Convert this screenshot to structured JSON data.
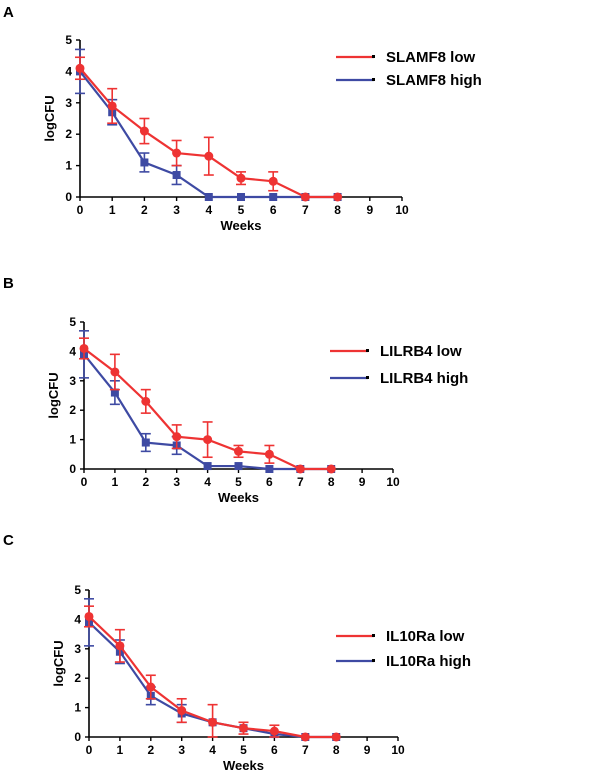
{
  "colors": {
    "low": "#ee3333",
    "high": "#3e4aa3",
    "axis": "#000000"
  },
  "chart_data": [
    {
      "type": "line",
      "panel": "A",
      "xlabel": "Weeks",
      "ylabel": "logCFU",
      "xlim": [
        0,
        10
      ],
      "ylim": [
        0,
        5
      ],
      "xticks": [
        0,
        1,
        2,
        3,
        4,
        5,
        6,
        7,
        8,
        9,
        10
      ],
      "yticks": [
        0,
        1,
        2,
        3,
        4,
        5
      ],
      "legend_position": "top-right",
      "series": [
        {
          "name": "SLAMF8 low",
          "marker": "circle",
          "color": "#ee3333",
          "x": [
            0,
            1,
            2,
            3,
            4,
            5,
            6,
            7,
            8
          ],
          "y": [
            4.1,
            2.9,
            2.1,
            1.4,
            1.3,
            0.6,
            0.5,
            0,
            0
          ],
          "err": [
            0.35,
            0.55,
            0.4,
            0.4,
            0.6,
            0.2,
            0.3,
            0,
            0
          ]
        },
        {
          "name": "SLAMF8 high",
          "marker": "square",
          "color": "#3e4aa3",
          "x": [
            0,
            1,
            2,
            3,
            4,
            5,
            6,
            7,
            8
          ],
          "y": [
            4.0,
            2.7,
            1.1,
            0.7,
            0,
            0,
            0,
            0,
            0
          ],
          "err": [
            0.7,
            0.4,
            0.3,
            0.3,
            0,
            0,
            0,
            0,
            0
          ]
        }
      ]
    },
    {
      "type": "line",
      "panel": "B",
      "xlabel": "Weeks",
      "ylabel": "logCFU",
      "xlim": [
        0,
        10
      ],
      "ylim": [
        0,
        5
      ],
      "xticks": [
        0,
        1,
        2,
        3,
        4,
        5,
        6,
        7,
        8,
        9,
        10
      ],
      "yticks": [
        0,
        1,
        2,
        3,
        4,
        5
      ],
      "legend_position": "top-right",
      "series": [
        {
          "name": "LILRB4 low",
          "marker": "circle",
          "color": "#ee3333",
          "x": [
            0,
            1,
            2,
            3,
            4,
            5,
            6,
            7,
            8
          ],
          "y": [
            4.1,
            3.3,
            2.3,
            1.1,
            1.0,
            0.6,
            0.5,
            0,
            0
          ],
          "err": [
            0.35,
            0.6,
            0.4,
            0.4,
            0.6,
            0.2,
            0.3,
            0,
            0
          ]
        },
        {
          "name": "LILRB4 high",
          "marker": "square",
          "color": "#3e4aa3",
          "x": [
            0,
            1,
            2,
            3,
            4,
            5,
            6,
            7,
            8
          ],
          "y": [
            3.9,
            2.6,
            0.9,
            0.8,
            0.1,
            0.1,
            0,
            0,
            0
          ],
          "err": [
            0.8,
            0.4,
            0.3,
            0.3,
            0,
            0,
            0,
            0,
            0
          ]
        }
      ]
    },
    {
      "type": "line",
      "panel": "C",
      "xlabel": "Weeks",
      "ylabel": "logCFU",
      "xlim": [
        0,
        10
      ],
      "ylim": [
        0,
        5
      ],
      "xticks": [
        0,
        1,
        2,
        3,
        4,
        5,
        6,
        7,
        8,
        9,
        10
      ],
      "yticks": [
        0,
        1,
        2,
        3,
        4,
        5
      ],
      "legend_position": "right",
      "series": [
        {
          "name": "IL10Ra low",
          "marker": "circle",
          "color": "#ee3333",
          "x": [
            0,
            1,
            2,
            3,
            4,
            5,
            6,
            7,
            8
          ],
          "y": [
            4.1,
            3.1,
            1.7,
            0.9,
            0.5,
            0.3,
            0.2,
            0,
            0
          ],
          "err": [
            0.35,
            0.55,
            0.4,
            0.4,
            0.6,
            0.2,
            0.2,
            0,
            0
          ]
        },
        {
          "name": "IL10Ra high",
          "marker": "square",
          "color": "#3e4aa3",
          "x": [
            0,
            1,
            2,
            3,
            4,
            5,
            6,
            7,
            8
          ],
          "y": [
            3.9,
            2.9,
            1.4,
            0.8,
            0.5,
            0.3,
            0.1,
            0,
            0
          ],
          "err": [
            0.8,
            0.4,
            0.3,
            0.3,
            0,
            0,
            0,
            0,
            0
          ]
        }
      ]
    }
  ]
}
